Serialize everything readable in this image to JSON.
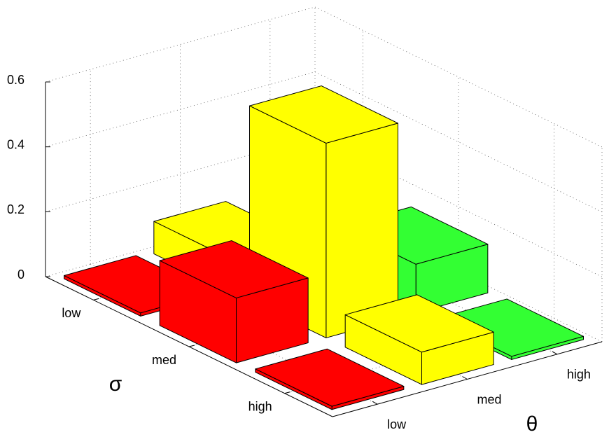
{
  "chart_data": {
    "type": "bar3d",
    "ylabel": "σ",
    "xlabel": "θ",
    "y_categories": [
      "low",
      "med",
      "high"
    ],
    "x_categories": [
      "low",
      "med",
      "high"
    ],
    "series": [
      {
        "color": "#ff0000",
        "values": [
          0.01,
          0.2,
          0.01
        ]
      },
      {
        "color": "#ffff00",
        "values": [
          0.1,
          0.6,
          0.1
        ]
      },
      {
        "color": "#33ff33",
        "values": [
          0,
          0.15,
          0.01
        ]
      }
    ],
    "zlim": [
      0,
      0.6
    ],
    "zticks": [
      0,
      0.2,
      0.4,
      0.6
    ],
    "grid": true
  }
}
